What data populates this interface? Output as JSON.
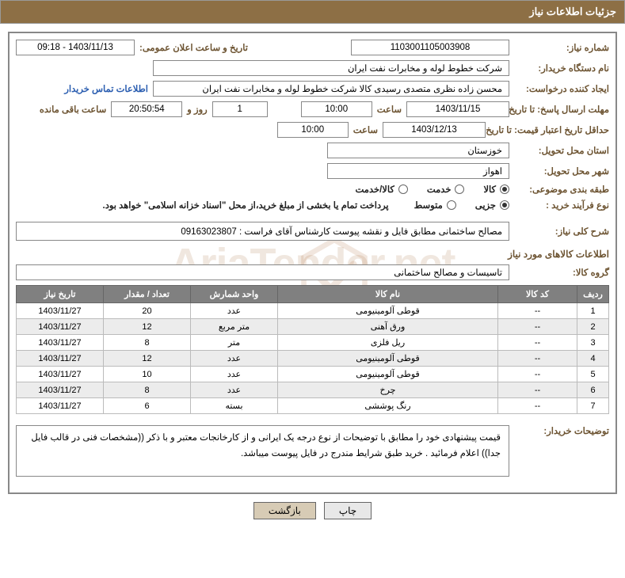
{
  "header": {
    "title": "جزئیات اطلاعات نیاز"
  },
  "fields": {
    "need_no_lbl": "شماره نیاز:",
    "need_no": "1103001105003908",
    "announce_lbl": "تاریخ و ساعت اعلان عمومی:",
    "announce": "1403/11/13 - 09:18",
    "buyer_org_lbl": "نام دستگاه خریدار:",
    "buyer_org": "شرکت خطوط لوله و مخابرات نفت ایران",
    "requestor_lbl": "ایجاد کننده درخواست:",
    "requestor": "محسن زاده نظری متصدی رسیدی کالا شرکت خطوط لوله و مخابرات نفت ایران",
    "contact_link": "اطلاعات تماس خریدار",
    "deadline_lbl": "مهلت ارسال پاسخ: تا تاریخ:",
    "deadline_date": "1403/11/15",
    "time_lbl": "ساعت",
    "deadline_time": "10:00",
    "days_val": "1",
    "days_and": "روز و",
    "countdown": "20:50:54",
    "remaining_lbl": "ساعت باقی مانده",
    "validity_lbl": "حداقل تاریخ اعتبار قیمت: تا تاریخ:",
    "validity_date": "1403/12/13",
    "validity_time": "10:00",
    "province_lbl": "استان محل تحویل:",
    "province": "خوزستان",
    "city_lbl": "شهر محل تحویل:",
    "city": "اهواز",
    "class_lbl": "طبقه بندی موضوعی:",
    "class_kalaa": "کالا",
    "class_service": "خدمت",
    "class_both": "کالا/خدمت",
    "process_lbl": "نوع فرآیند خرید :",
    "process_small": "جزیی",
    "process_medium": "متوسط",
    "process_note": "پرداخت تمام یا بخشی از مبلغ خرید،از محل \"اسناد خزانه اسلامی\" خواهد بود.",
    "overview_lbl": "شرح کلی نیاز:",
    "overview": "مصالح ساختمانی مطابق فایل و نقشه پیوست کارشناس آقای فراست : 09163023807",
    "goods_section": "اطلاعات کالاهای مورد نیاز",
    "group_lbl": "گروه کالا:",
    "group": "تاسیسات و مصالح ساختمانی",
    "buyer_desc_lbl": "توضیحات خریدار:",
    "buyer_desc": "قیمت پیشنهادی خود را مطابق با توضیحات از نوع درجه یک ایرانی و از کارخانجات معتبر و با ذکر ((مشخصات فنی در قالب فایل جدا)) اعلام فرمائید . خرید طبق شرایط مندرج در فایل پیوست میباشد."
  },
  "table": {
    "headers": {
      "row": "ردیف",
      "code": "کد کالا",
      "name": "نام کالا",
      "unit": "واحد شمارش",
      "qty": "تعداد / مقدار",
      "date": "تاریخ نیاز"
    },
    "rows": [
      {
        "r": "1",
        "code": "--",
        "name": "قوطی آلومینیومی",
        "unit": "عدد",
        "qty": "20",
        "date": "1403/11/27"
      },
      {
        "r": "2",
        "code": "--",
        "name": "ورق آهنی",
        "unit": "متر مربع",
        "qty": "12",
        "date": "1403/11/27"
      },
      {
        "r": "3",
        "code": "--",
        "name": "ریل فلزی",
        "unit": "متر",
        "qty": "8",
        "date": "1403/11/27"
      },
      {
        "r": "4",
        "code": "--",
        "name": "قوطی آلومینیومی",
        "unit": "عدد",
        "qty": "12",
        "date": "1403/11/27"
      },
      {
        "r": "5",
        "code": "--",
        "name": "قوطی آلومینیومی",
        "unit": "عدد",
        "qty": "10",
        "date": "1403/11/27"
      },
      {
        "r": "6",
        "code": "--",
        "name": "چرخ",
        "unit": "عدد",
        "qty": "8",
        "date": "1403/11/27"
      },
      {
        "r": "7",
        "code": "--",
        "name": "رنگ پوششی",
        "unit": "بسته",
        "qty": "6",
        "date": "1403/11/27"
      }
    ]
  },
  "buttons": {
    "print": "چاپ",
    "back": "بازگشت"
  },
  "watermark": "AriaTender.net"
}
